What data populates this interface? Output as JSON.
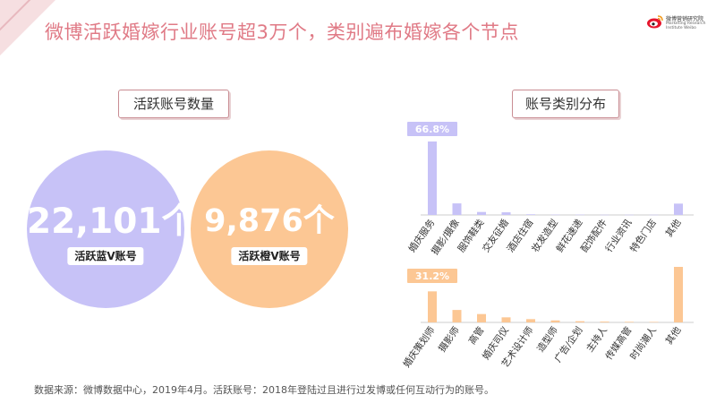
{
  "page": {
    "title": "微博活跃婚嫁行业账号超3万个，类别遍布婚嫁各个节点",
    "logo_cn": "微博营销研究院",
    "logo_en": [
      "Marketing Research",
      "Institute Weibo"
    ],
    "source_note": "数据来源：微博数据中心，2019年4月。活跃账号：2018年登陆过且进行过发博或任何互动行为的账号。"
  },
  "left_section": {
    "label": "活跃账号数量",
    "blue": {
      "value": "22,101个",
      "label": "活跃蓝V账号",
      "color": "#c7c2f7"
    },
    "orange": {
      "value": "9,876个",
      "label": "活跃橙V账号",
      "color": "#fcc794"
    }
  },
  "right_section": {
    "label": "账号类别分布"
  },
  "colors": {
    "blue_bar": "#c7c2f7",
    "orange_bar": "#fcc794",
    "title": "#e07a86"
  },
  "chart_data": [
    {
      "type": "bar",
      "title": "",
      "highlight_label": "66.8%",
      "categories": [
        "婚庆服务",
        "摄影/摄像",
        "服饰鞋类",
        "交友征婚",
        "酒店住宿",
        "妆发造型",
        "鲜花速递",
        "配饰配件",
        "行业资讯",
        "特色门店",
        "其他"
      ],
      "values": [
        66.8,
        10.5,
        2.7,
        2.4,
        0.6,
        0.3,
        0.3,
        0.2,
        0.2,
        0.2,
        10.3
      ],
      "ylim": [
        0,
        70
      ],
      "color": "#c7c2f7"
    },
    {
      "type": "bar",
      "title": "",
      "highlight_label": "31.2%",
      "categories": [
        "婚庆策划师",
        "摄影师",
        "高管",
        "婚庆司仪",
        "艺术设计师",
        "造型师",
        "广告/企划",
        "主持人",
        "传媒高管",
        "时尚潮人",
        "其他"
      ],
      "values": [
        31.2,
        12.5,
        8.4,
        5.1,
        3.3,
        2.0,
        1.2,
        0.8,
        0.6,
        0.5,
        55.8
      ],
      "ylim": [
        0,
        60
      ],
      "color": "#fcc794"
    }
  ]
}
